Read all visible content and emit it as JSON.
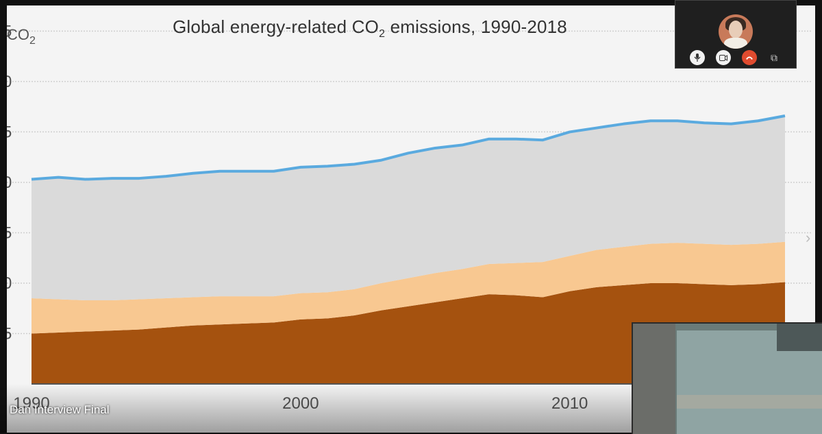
{
  "slide": {
    "title_prefix": "Global energy-related CO",
    "title_sub": "2",
    "title_suffix": " emissions, 1990-2018",
    "y_unit_prefix": "CO",
    "y_unit_sub": "2",
    "next_icon": "chevron-right-icon"
  },
  "chart_data": {
    "type": "area",
    "x": [
      1990,
      1991,
      1992,
      1993,
      1994,
      1995,
      1996,
      1997,
      1998,
      1999,
      2000,
      2001,
      2002,
      2003,
      2004,
      2005,
      2006,
      2007,
      2008,
      2009,
      2010,
      2011,
      2012,
      2013,
      2014,
      2015,
      2016,
      2017,
      2018
    ],
    "x_ticks": [
      "1990",
      "2000",
      "2010"
    ],
    "y_tick_labels": [
      "5",
      "0",
      "5",
      "0",
      "5",
      "0",
      "5"
    ],
    "series": [
      {
        "color": "#a5520f",
        "values": [
          5.0,
          5.1,
          5.2,
          5.3,
          5.4,
          5.6,
          5.8,
          5.9,
          6.0,
          6.1,
          6.4,
          6.5,
          6.8,
          7.3,
          7.7,
          8.1,
          8.5,
          8.9,
          8.8,
          8.6,
          9.2,
          9.6,
          9.8,
          10.0,
          10.0,
          9.9,
          9.8,
          9.9,
          10.1
        ]
      },
      {
        "color": "#f8c891",
        "values": [
          3.5,
          3.3,
          3.1,
          3.0,
          3.0,
          2.9,
          2.8,
          2.8,
          2.7,
          2.6,
          2.6,
          2.6,
          2.6,
          2.7,
          2.8,
          2.9,
          2.9,
          3.0,
          3.2,
          3.5,
          3.5,
          3.7,
          3.8,
          3.9,
          4.0,
          4.0,
          4.0,
          4.0,
          4.0
        ]
      },
      {
        "color": "#dadada",
        "values": [
          11.8,
          12.1,
          12.0,
          12.1,
          12.0,
          12.1,
          12.3,
          12.4,
          12.4,
          12.4,
          12.5,
          12.5,
          12.4,
          12.2,
          12.4,
          12.4,
          12.3,
          12.4,
          12.3,
          12.1,
          12.3,
          12.1,
          12.2,
          12.2,
          12.1,
          12.0,
          12.0,
          12.2,
          12.5
        ]
      }
    ],
    "total_line_color": "#5aaadf",
    "ylim": [
      0,
      37
    ],
    "grid": true,
    "legend": "none"
  },
  "call": {
    "mic_icon": "microphone-icon",
    "camera_icon": "video-camera-icon",
    "hangup_icon": "hang-up-icon",
    "popout_icon": "pop-out-icon",
    "participant_name": "Dan Interview Final"
  }
}
